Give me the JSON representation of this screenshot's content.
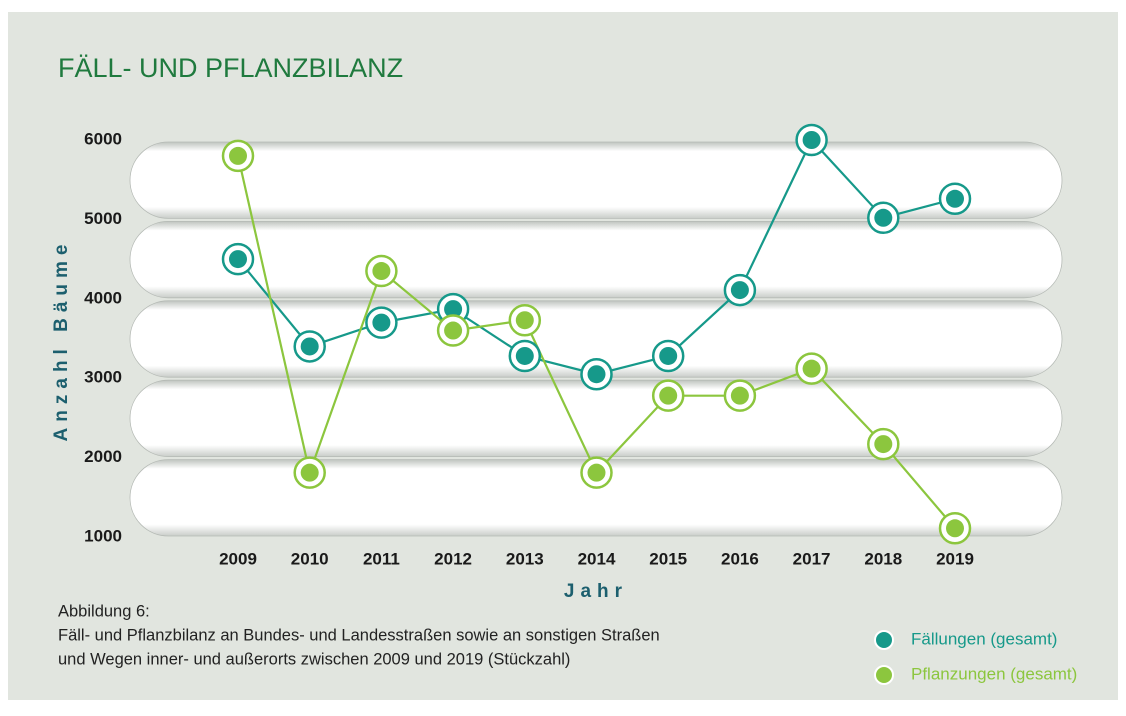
{
  "chart_data": {
    "type": "line",
    "title": "FÄLL- UND PFLANZBILANZ",
    "y_label": "Anzahl Bäume",
    "x_label": "Jahr",
    "categories": [
      "2009",
      "2010",
      "2011",
      "2012",
      "2013",
      "2014",
      "2015",
      "2016",
      "2017",
      "2018",
      "2019"
    ],
    "series": [
      {
        "name": "Fällungen (gesamt)",
        "color": "#16998a",
        "values": [
          4500,
          3400,
          3700,
          3870,
          3280,
          3050,
          3280,
          4110,
          6000,
          5020,
          5260
        ]
      },
      {
        "name": "Pflanzungen (gesamt)",
        "color": "#8cc63e",
        "values": [
          5800,
          1810,
          4350,
          3600,
          3730,
          1810,
          2780,
          2780,
          3120,
          2170,
          1110
        ]
      }
    ],
    "ylim": [
      1000,
      6000
    ],
    "yticks": [
      1000,
      2000,
      3000,
      4000,
      5000,
      6000
    ],
    "grid": true,
    "caption": [
      "Abbildung 6:",
      "Fäll- und Pflanzbilanz an Bundes- und Landesstraßen sowie an sonstigen Straßen",
      "und Wegen inner- und außerorts zwischen 2009 und 2019 (Stückzahl)"
    ],
    "legend": "bottom-right"
  }
}
